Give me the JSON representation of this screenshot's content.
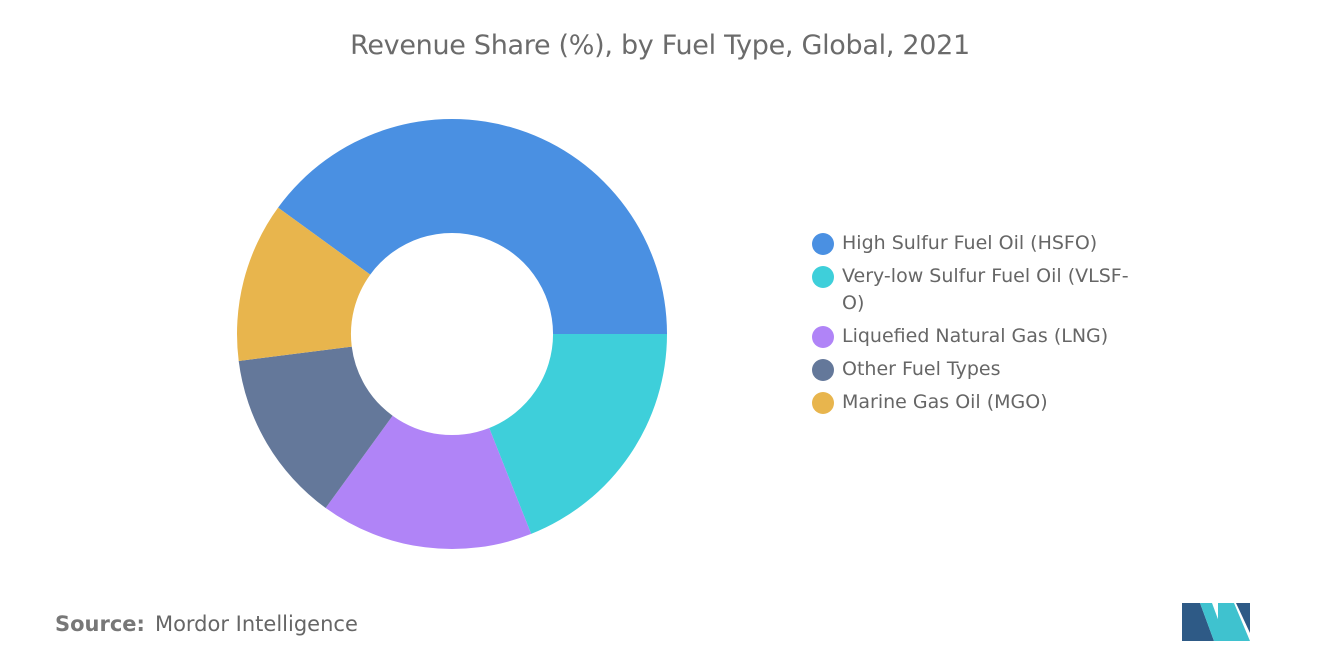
{
  "chart_data": {
    "type": "pie",
    "title": "Revenue Share (%), by Fuel Type, Global, 2021",
    "categories": [
      "High Sulfur Fuel Oil (HSFO)",
      "Very-low Sulfur Fuel Oil (VLSF-O)",
      "Liquefied Natural Gas (LNG)",
      "Other Fuel Types",
      "Marine Gas Oil (MGO)"
    ],
    "values": [
      40,
      19,
      16,
      13,
      12
    ],
    "colors": [
      "#4a90e2",
      "#3ecfda",
      "#b084f7",
      "#64789a",
      "#e8b54d"
    ],
    "legend_position": "right",
    "inner_radius_ratio": 0.47
  },
  "source": {
    "label": "Source:",
    "value": "Mordor Intelligence"
  },
  "logo": {
    "icon": "mordor-intelligence-logo",
    "colors": [
      "#2e5a86",
      "#3fc2cf"
    ]
  }
}
